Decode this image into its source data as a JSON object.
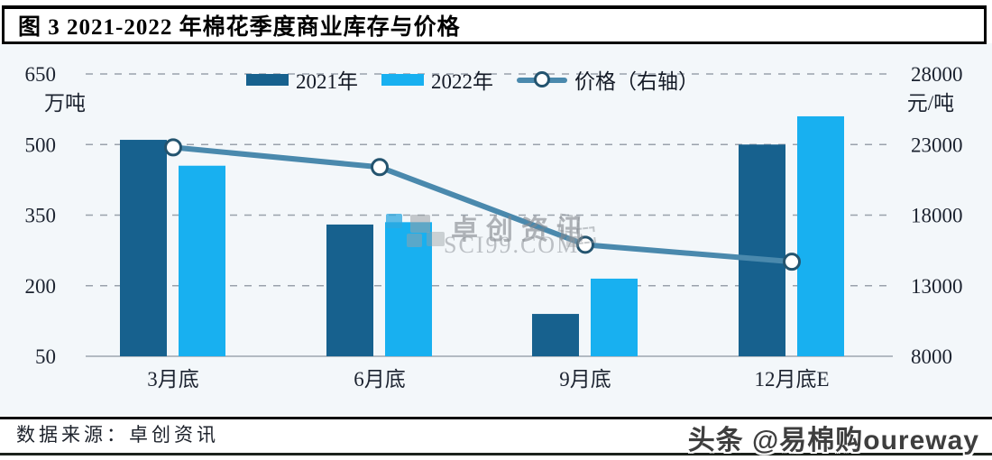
{
  "title": "图 3 2021-2022 年棉花季度商业库存与价格",
  "legend": [
    {
      "label": "2021年",
      "color": "#17618e"
    },
    {
      "label": "2022年",
      "color": "#18b0f0"
    },
    {
      "label": "价格（右轴）",
      "color": "#4a89ad"
    }
  ],
  "chart_data": {
    "type": "bar",
    "categories": [
      "3月底",
      "6月底",
      "9月底",
      "12月底E"
    ],
    "series": [
      {
        "name": "2021年",
        "type": "bar",
        "axis": "left",
        "color": "#17618e",
        "values": [
          510,
          330,
          140,
          500
        ]
      },
      {
        "name": "2022年",
        "type": "bar",
        "axis": "left",
        "color": "#18b0f0",
        "values": [
          455,
          335,
          215,
          560
        ]
      },
      {
        "name": "价格（右轴）",
        "type": "line",
        "axis": "right",
        "color": "#4a89ad",
        "marker": "open-circle",
        "values": [
          22800,
          21400,
          15900,
          14700
        ]
      }
    ],
    "left_axis": {
      "unit": "万吨",
      "ticks": [
        650,
        500,
        350,
        200,
        50
      ],
      "min": 50,
      "max": 650
    },
    "right_axis": {
      "unit": "元/吨",
      "ticks": [
        28000,
        23000,
        18000,
        13000,
        8000
      ],
      "min": 8000,
      "max": 28000
    },
    "grid": "horizontal dashed",
    "legend_position": "top"
  },
  "watermark": {
    "line1": "卓创资讯",
    "line2": "SCI99.COM"
  },
  "footer": {
    "source": "数据来源：卓创资讯",
    "branding": "头条 @易棉购oureway"
  }
}
